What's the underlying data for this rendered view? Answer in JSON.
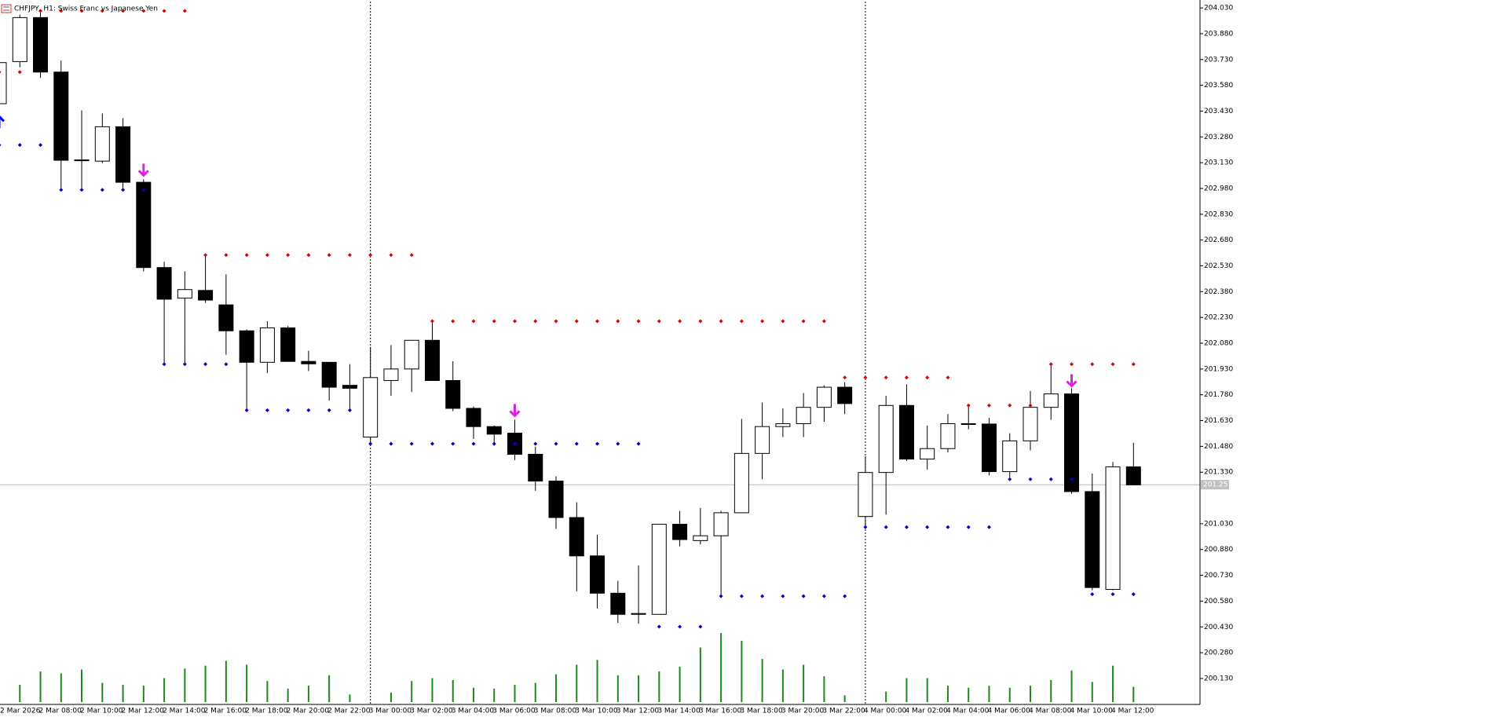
{
  "chart_data": {
    "type": "candlestick",
    "title": "CHFJPY, H1:  Swiss Franc vs Japanese Yen",
    "categories": [
      "2 Mar 2026",
      null,
      "2 Mar 08:00",
      null,
      "2 Mar 10:00",
      null,
      "2 Mar 12:00",
      null,
      "2 Mar 14:00",
      null,
      "2 Mar 16:00",
      null,
      "2 Mar 18:00",
      null,
      "2 Mar 20:00",
      null,
      "2 Mar 22:00",
      null,
      "3 Mar 00:00",
      null,
      "3 Mar 02:00",
      null,
      "3 Mar 04:00",
      null,
      "3 Mar 06:00",
      null,
      "3 Mar 08:00",
      null,
      "3 Mar 10:00",
      null,
      "3 Mar 12:00",
      null,
      "3 Mar 14:00",
      null,
      "3 Mar 16:00",
      null,
      "3 Mar 18:00",
      null,
      "3 Mar 20:00",
      null,
      "3 Mar 22:00",
      null,
      "4 Mar 00:00",
      null,
      "4 Mar 02:00",
      null,
      "4 Mar 04:00",
      null,
      "4 Mar 06:00",
      null,
      "4 Mar 08:00",
      null,
      "4 Mar 10:00",
      null,
      "4 Mar 12:00",
      null
    ],
    "open": [
      203.473,
      203.718,
      203.974,
      203.657,
      203.144,
      203.139,
      203.339,
      203.016,
      202.52,
      202.342,
      202.387,
      202.303,
      202.152,
      201.969,
      202.169,
      201.974,
      201.969,
      201.835,
      201.534,
      201.863,
      201.93,
      202.097,
      201.863,
      201.701,
      201.595,
      201.557,
      201.434,
      201.278,
      201.066,
      200.843,
      200.626,
      200.503,
      200.503,
      201.027,
      200.932,
      200.96,
      201.094,
      201.439,
      201.595,
      201.612,
      201.707,
      201.824,
      201.072,
      201.328,
      201.718,
      201.406,
      201.467,
      201.612,
      201.61,
      201.333,
      201.512,
      201.707,
      201.785,
      201.217,
      200.648,
      201.361
    ],
    "high": [
      203.73,
      203.991,
      204.019,
      203.724,
      203.434,
      203.417,
      203.389,
      203.033,
      202.554,
      202.498,
      202.593,
      202.481,
      202.16,
      202.208,
      202.18,
      202.036,
      201.969,
      201.958,
      202.058,
      202.069,
      202.086,
      202.197,
      201.975,
      201.712,
      201.601,
      201.635,
      201.478,
      201.306,
      201.155,
      200.966,
      200.698,
      200.787,
      201.027,
      201.105,
      201.122,
      201.105,
      201.64,
      201.735,
      201.701,
      201.79,
      201.835,
      201.852,
      201.423,
      201.774,
      201.841,
      201.601,
      201.668,
      201.712,
      201.646,
      201.556,
      201.802,
      201.963,
      201.818,
      201.322,
      201.389,
      201.501
    ],
    "low": [
      203.473,
      203.685,
      203.623,
      202.977,
      202.977,
      203.127,
      202.977,
      202.498,
      201.958,
      201.958,
      202.314,
      202.013,
      201.69,
      201.907,
      201.974,
      201.918,
      201.746,
      201.69,
      201.495,
      201.774,
      201.796,
      201.863,
      201.685,
      201.523,
      201.484,
      201.4,
      201.222,
      201.0,
      200.637,
      200.537,
      200.453,
      200.448,
      200.503,
      200.899,
      200.91,
      200.609,
      201.094,
      201.289,
      201.534,
      201.534,
      201.623,
      201.668,
      201.0,
      201.083,
      201.395,
      201.345,
      201.445,
      201.579,
      201.311,
      201.3,
      201.456,
      201.634,
      201.205,
      200.643,
      200.643,
      201.256
    ],
    "close": [
      203.712,
      203.974,
      203.657,
      203.144,
      203.146,
      203.339,
      203.016,
      202.52,
      202.336,
      202.392,
      202.331,
      202.152,
      201.969,
      202.169,
      201.974,
      201.96,
      201.824,
      201.818,
      201.88,
      201.93,
      202.097,
      201.863,
      201.701,
      201.595,
      201.551,
      201.434,
      201.278,
      201.066,
      200.843,
      200.626,
      200.503,
      200.508,
      201.027,
      200.938,
      200.96,
      201.094,
      201.439,
      201.595,
      201.612,
      201.707,
      201.824,
      201.729,
      201.328,
      201.718,
      201.406,
      201.467,
      201.612,
      201.61,
      201.333,
      201.512,
      201.707,
      201.785,
      201.217,
      200.659,
      201.361,
      201.256
    ],
    "volume": [
      null,
      18,
      32,
      30,
      34,
      20,
      18,
      17,
      25,
      35,
      38,
      43,
      39,
      22,
      14,
      17,
      28,
      8,
      null,
      10,
      22,
      25,
      23,
      15,
      14,
      18,
      20,
      29,
      39,
      44,
      28,
      28,
      32,
      37,
      57,
      72,
      64,
      45,
      34,
      39,
      27,
      7,
      null,
      11,
      25,
      25,
      17,
      15,
      17,
      15,
      17,
      23,
      33,
      21,
      38,
      16
    ],
    "resistance": [
      203.657,
      203.657,
      204.013,
      204.013,
      204.013,
      204.013,
      204.013,
      204.013,
      204.013,
      204.013,
      202.593,
      202.593,
      202.593,
      202.593,
      202.593,
      202.593,
      202.593,
      202.593,
      202.593,
      202.593,
      202.593,
      202.208,
      202.208,
      202.208,
      202.208,
      202.208,
      202.208,
      202.208,
      202.208,
      202.208,
      202.208,
      202.208,
      202.208,
      202.208,
      202.208,
      202.208,
      202.208,
      202.208,
      202.208,
      202.208,
      202.208,
      201.88,
      201.88,
      201.88,
      201.88,
      201.88,
      201.88,
      201.718,
      201.718,
      201.718,
      201.718,
      201.958,
      201.958,
      201.958,
      201.958,
      201.958
    ],
    "support": [
      203.233,
      203.233,
      203.233,
      202.972,
      202.972,
      202.972,
      202.972,
      202.972,
      201.958,
      201.958,
      201.958,
      201.958,
      201.69,
      201.69,
      201.69,
      201.69,
      201.69,
      201.69,
      201.495,
      201.495,
      201.495,
      201.495,
      201.495,
      201.495,
      201.495,
      201.495,
      201.495,
      201.495,
      201.495,
      201.495,
      201.495,
      201.495,
      200.431,
      200.431,
      200.431,
      200.609,
      200.609,
      200.609,
      200.609,
      200.609,
      200.609,
      200.609,
      201.01,
      201.01,
      201.01,
      201.01,
      201.01,
      201.01,
      201.01,
      201.289,
      201.289,
      201.289,
      201.289,
      200.62,
      200.62,
      200.62
    ],
    "arrows_down": [
      null,
      null,
      null,
      null,
      null,
      null,
      null,
      203.088,
      null,
      null,
      null,
      null,
      null,
      null,
      null,
      null,
      null,
      null,
      null,
      null,
      null,
      null,
      null,
      null,
      null,
      201.69,
      null,
      null,
      null,
      null,
      null,
      null,
      null,
      null,
      null,
      null,
      null,
      null,
      null,
      null,
      null,
      null,
      null,
      null,
      null,
      null,
      null,
      null,
      null,
      null,
      null,
      null,
      201.863,
      null,
      null,
      null
    ],
    "arrows_up": [
      203.367,
      null,
      null,
      null,
      null,
      null,
      null,
      null,
      null,
      null,
      null,
      null,
      null,
      null,
      null,
      null,
      null,
      null,
      null,
      null,
      null,
      null,
      null,
      null,
      null,
      null,
      null,
      null,
      null,
      null,
      null,
      null,
      null,
      null,
      null,
      null,
      null,
      null,
      null,
      null,
      null,
      null,
      null,
      null,
      null,
      null,
      null,
      null,
      null,
      null,
      null,
      null,
      null,
      null,
      null,
      null
    ],
    "current_price": 201.257,
    "ylim": [
      199.979,
      204.067
    ],
    "yticks": [
      {
        "value": 204.03,
        "label": "204.030"
      },
      {
        "value": 203.88,
        "label": "203.880"
      },
      {
        "value": 203.73,
        "label": "203.730"
      },
      {
        "value": 203.58,
        "label": "203.580"
      },
      {
        "value": 203.43,
        "label": "203.430"
      },
      {
        "value": 203.28,
        "label": "203.280"
      },
      {
        "value": 203.13,
        "label": "203.130"
      },
      {
        "value": 202.98,
        "label": "202.980"
      },
      {
        "value": 202.83,
        "label": "202.830"
      },
      {
        "value": 202.68,
        "label": "202.680"
      },
      {
        "value": 202.53,
        "label": "202.530"
      },
      {
        "value": 202.38,
        "label": "202.380"
      },
      {
        "value": 202.23,
        "label": "202.230"
      },
      {
        "value": 202.08,
        "label": "202.080"
      },
      {
        "value": 201.93,
        "label": "201.930"
      },
      {
        "value": 201.78,
        "label": "201.780"
      },
      {
        "value": 201.63,
        "label": "201.630"
      },
      {
        "value": 201.48,
        "label": "201.480"
      },
      {
        "value": 201.33,
        "label": "201.330"
      },
      {
        "value": 201.03,
        "label": "201.030"
      },
      {
        "value": 200.88,
        "label": "200.880"
      },
      {
        "value": 200.73,
        "label": "200.730"
      },
      {
        "value": 200.58,
        "label": "200.580"
      },
      {
        "value": 200.43,
        "label": "200.430"
      },
      {
        "value": 200.28,
        "label": "200.280"
      },
      {
        "value": 200.13,
        "label": "200.130"
      }
    ],
    "bull_color": "#ffffff",
    "bear_color": "#000000",
    "volume_color": "#1a8a1a",
    "resistance_color": "#e00000",
    "support_color": "#0000cc",
    "arrow_down_color": "#e020e0",
    "arrow_up_color": "#0000ff"
  }
}
